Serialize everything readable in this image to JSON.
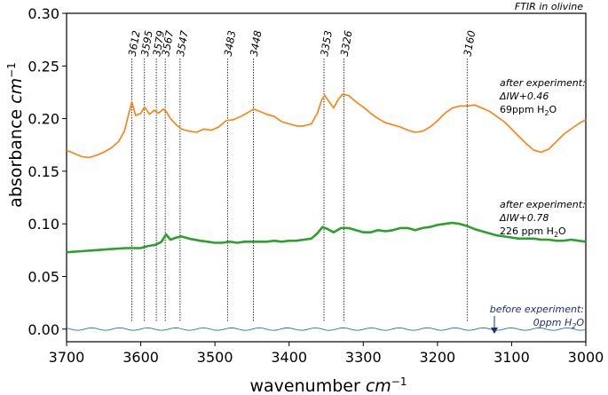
{
  "chart_data": {
    "type": "line",
    "title": "FTIR in olivine",
    "xlabel": "wavenumber",
    "xlabel_unit": "cm",
    "xlabel_unit_exp": "−1",
    "ylabel": "absorbance",
    "ylabel_unit": "cm",
    "ylabel_unit_exp": "−1",
    "xlim": [
      3700,
      3000
    ],
    "ylim": [
      -0.012,
      0.3
    ],
    "x_ticks": [
      "3700",
      "3600",
      "3500",
      "3400",
      "3300",
      "3200",
      "3100",
      "3000"
    ],
    "y_ticks": [
      "0.00",
      "0.05",
      "0.10",
      "0.15",
      "0.20",
      "0.25",
      "0.30"
    ],
    "grid": false,
    "peaks": [
      "3612",
      "3595",
      "3579",
      "3567",
      "3547",
      "3483",
      "3448",
      "3353",
      "3326",
      "3160"
    ],
    "series": [
      {
        "color": "#ff7f0e",
        "annotation": [
          "after experiment:",
          "ΔIW+0.46",
          "69ppm H",
          "2",
          "O"
        ],
        "points": [
          [
            3700,
            0.17
          ],
          [
            3690,
            0.167
          ],
          [
            3680,
            0.164
          ],
          [
            3670,
            0.163
          ],
          [
            3660,
            0.165
          ],
          [
            3650,
            0.168
          ],
          [
            3640,
            0.172
          ],
          [
            3630,
            0.178
          ],
          [
            3622,
            0.188
          ],
          [
            3616,
            0.205
          ],
          [
            3612,
            0.216
          ],
          [
            3607,
            0.203
          ],
          [
            3600,
            0.205
          ],
          [
            3595,
            0.211
          ],
          [
            3588,
            0.204
          ],
          [
            3582,
            0.208
          ],
          [
            3576,
            0.205
          ],
          [
            3570,
            0.209
          ],
          [
            3566,
            0.207
          ],
          [
            3560,
            0.2
          ],
          [
            3552,
            0.194
          ],
          [
            3545,
            0.19
          ],
          [
            3535,
            0.188
          ],
          [
            3525,
            0.187
          ],
          [
            3515,
            0.19
          ],
          [
            3505,
            0.189
          ],
          [
            3495,
            0.192
          ],
          [
            3485,
            0.198
          ],
          [
            3475,
            0.199
          ],
          [
            3465,
            0.202
          ],
          [
            3455,
            0.206
          ],
          [
            3448,
            0.209
          ],
          [
            3440,
            0.207
          ],
          [
            3430,
            0.204
          ],
          [
            3420,
            0.202
          ],
          [
            3410,
            0.197
          ],
          [
            3400,
            0.195
          ],
          [
            3390,
            0.193
          ],
          [
            3380,
            0.193
          ],
          [
            3370,
            0.195
          ],
          [
            3362,
            0.205
          ],
          [
            3356,
            0.218
          ],
          [
            3352,
            0.222
          ],
          [
            3346,
            0.216
          ],
          [
            3340,
            0.21
          ],
          [
            3334,
            0.218
          ],
          [
            3328,
            0.223
          ],
          [
            3320,
            0.222
          ],
          [
            3310,
            0.216
          ],
          [
            3300,
            0.211
          ],
          [
            3290,
            0.205
          ],
          [
            3280,
            0.2
          ],
          [
            3270,
            0.196
          ],
          [
            3260,
            0.194
          ],
          [
            3250,
            0.192
          ],
          [
            3240,
            0.189
          ],
          [
            3230,
            0.187
          ],
          [
            3220,
            0.188
          ],
          [
            3210,
            0.192
          ],
          [
            3200,
            0.198
          ],
          [
            3190,
            0.205
          ],
          [
            3180,
            0.21
          ],
          [
            3170,
            0.212
          ],
          [
            3160,
            0.212
          ],
          [
            3150,
            0.213
          ],
          [
            3140,
            0.21
          ],
          [
            3130,
            0.207
          ],
          [
            3120,
            0.202
          ],
          [
            3110,
            0.197
          ],
          [
            3100,
            0.19
          ],
          [
            3090,
            0.183
          ],
          [
            3080,
            0.176
          ],
          [
            3070,
            0.17
          ],
          [
            3060,
            0.168
          ],
          [
            3050,
            0.171
          ],
          [
            3040,
            0.178
          ],
          [
            3030,
            0.185
          ],
          [
            3020,
            0.19
          ],
          [
            3010,
            0.195
          ],
          [
            3000,
            0.199
          ]
        ]
      },
      {
        "color": "#2ca02c",
        "annotation": [
          "after experiment:",
          "ΔIW+0.78",
          "226 ppm H",
          "2",
          "O"
        ],
        "points": [
          [
            3700,
            0.073
          ],
          [
            3680,
            0.074
          ],
          [
            3660,
            0.075
          ],
          [
            3640,
            0.076
          ],
          [
            3620,
            0.077
          ],
          [
            3600,
            0.077
          ],
          [
            3590,
            0.079
          ],
          [
            3580,
            0.08
          ],
          [
            3572,
            0.083
          ],
          [
            3566,
            0.09
          ],
          [
            3560,
            0.085
          ],
          [
            3552,
            0.087
          ],
          [
            3545,
            0.088
          ],
          [
            3535,
            0.086
          ],
          [
            3520,
            0.084
          ],
          [
            3510,
            0.083
          ],
          [
            3500,
            0.082
          ],
          [
            3490,
            0.082
          ],
          [
            3480,
            0.083
          ],
          [
            3470,
            0.082
          ],
          [
            3460,
            0.083
          ],
          [
            3450,
            0.083
          ],
          [
            3440,
            0.083
          ],
          [
            3430,
            0.083
          ],
          [
            3420,
            0.084
          ],
          [
            3410,
            0.083
          ],
          [
            3400,
            0.084
          ],
          [
            3390,
            0.084
          ],
          [
            3380,
            0.085
          ],
          [
            3370,
            0.086
          ],
          [
            3362,
            0.091
          ],
          [
            3355,
            0.097
          ],
          [
            3348,
            0.095
          ],
          [
            3340,
            0.092
          ],
          [
            3330,
            0.096
          ],
          [
            3320,
            0.096
          ],
          [
            3310,
            0.094
          ],
          [
            3300,
            0.092
          ],
          [
            3290,
            0.092
          ],
          [
            3280,
            0.094
          ],
          [
            3270,
            0.093
          ],
          [
            3260,
            0.094
          ],
          [
            3250,
            0.096
          ],
          [
            3240,
            0.096
          ],
          [
            3230,
            0.094
          ],
          [
            3220,
            0.096
          ],
          [
            3210,
            0.097
          ],
          [
            3200,
            0.099
          ],
          [
            3190,
            0.1
          ],
          [
            3180,
            0.101
          ],
          [
            3170,
            0.1
          ],
          [
            3160,
            0.098
          ],
          [
            3150,
            0.095
          ],
          [
            3140,
            0.093
          ],
          [
            3130,
            0.091
          ],
          [
            3120,
            0.089
          ],
          [
            3110,
            0.088
          ],
          [
            3100,
            0.087
          ],
          [
            3090,
            0.086
          ],
          [
            3080,
            0.086
          ],
          [
            3070,
            0.086
          ],
          [
            3060,
            0.085
          ],
          [
            3050,
            0.085
          ],
          [
            3040,
            0.084
          ],
          [
            3030,
            0.084
          ],
          [
            3020,
            0.085
          ],
          [
            3010,
            0.084
          ],
          [
            3000,
            0.083
          ]
        ]
      },
      {
        "color": "#1f77b4",
        "annotation": [
          "before experiment:",
          "0ppm H",
          "2",
          "O"
        ],
        "baseline": 0.0,
        "ripple": 0.0012
      }
    ]
  }
}
